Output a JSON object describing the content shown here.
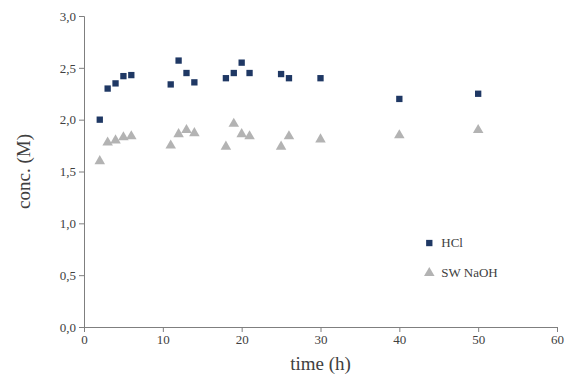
{
  "chart_data": {
    "type": "scatter",
    "x_label": "time (h)",
    "y_label": "conc. (M)",
    "x": [
      2,
      3,
      4,
      5,
      6,
      11,
      12,
      13,
      14,
      18,
      19,
      20,
      21,
      25,
      26,
      30,
      40,
      50
    ],
    "series": [
      {
        "name": "HCl",
        "color": "#1f3864",
        "marker": "square",
        "values": [
          2.0,
          2.3,
          2.35,
          2.42,
          2.43,
          2.34,
          2.57,
          2.45,
          2.36,
          2.4,
          2.45,
          2.55,
          2.45,
          2.44,
          2.4,
          2.4,
          2.2,
          2.25
        ]
      },
      {
        "name": "SW NaOH",
        "color": "#b3b3b3",
        "marker": "triangle",
        "values": [
          1.6,
          1.78,
          1.8,
          1.83,
          1.84,
          1.75,
          1.86,
          1.9,
          1.87,
          1.74,
          1.96,
          1.86,
          1.84,
          1.74,
          1.84,
          1.81,
          1.85,
          1.9
        ]
      }
    ],
    "xlim": [
      0,
      60
    ],
    "xticks": [
      0,
      10,
      20,
      30,
      40,
      50,
      60
    ],
    "ylim": [
      0,
      3
    ],
    "yticks": [
      {
        "value": 0,
        "label": "0,0"
      },
      {
        "value": 0.5,
        "label": "0,5"
      },
      {
        "value": 1,
        "label": "1,0"
      },
      {
        "value": 1.5,
        "label": "1,5"
      },
      {
        "value": 2,
        "label": "2,0"
      },
      {
        "value": 2.5,
        "label": "2,5"
      },
      {
        "value": 3,
        "label": "3,0"
      }
    ],
    "grid": false,
    "legend": "lower right"
  }
}
